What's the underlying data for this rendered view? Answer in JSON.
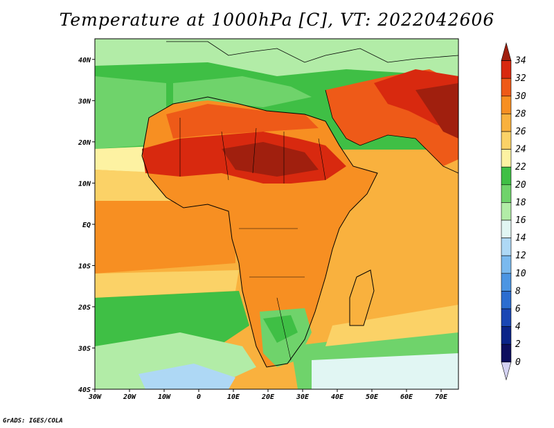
{
  "title": "Temperature at 1000hPa [C], VT: 2022042606",
  "credit": "GrADS: IGES/COLA",
  "map": {
    "region": "Africa",
    "projection": "latlon",
    "lon_range": [
      -30,
      75
    ],
    "lat_range": [
      -40,
      45
    ],
    "lon_ticks": [
      "30W",
      "20W",
      "10W",
      "0",
      "10E",
      "20E",
      "30E",
      "40E",
      "50E",
      "60E",
      "70E"
    ],
    "lat_ticks": [
      "40N",
      "30N",
      "20N",
      "10N",
      "EQ",
      "10S",
      "20S",
      "30S",
      "40S"
    ]
  },
  "colorbar": {
    "levels": [
      "34",
      "32",
      "30",
      "28",
      "26",
      "24",
      "22",
      "20",
      "18",
      "16",
      "14",
      "12",
      "10",
      "8",
      "6",
      "4",
      "2",
      "0"
    ],
    "colors": [
      "#a01f0e",
      "#d8290f",
      "#ee5a18",
      "#f78f22",
      "#f9b13e",
      "#fbd267",
      "#fdf2a2",
      "#3fbf45",
      "#6fd36b",
      "#b2eca7",
      "#e1f6f3",
      "#aed8f5",
      "#7ab9ee",
      "#4c95e2",
      "#2b6dd0",
      "#1946b4",
      "#0b2488",
      "#0e0f5e",
      "#d5d3f3"
    ]
  }
}
